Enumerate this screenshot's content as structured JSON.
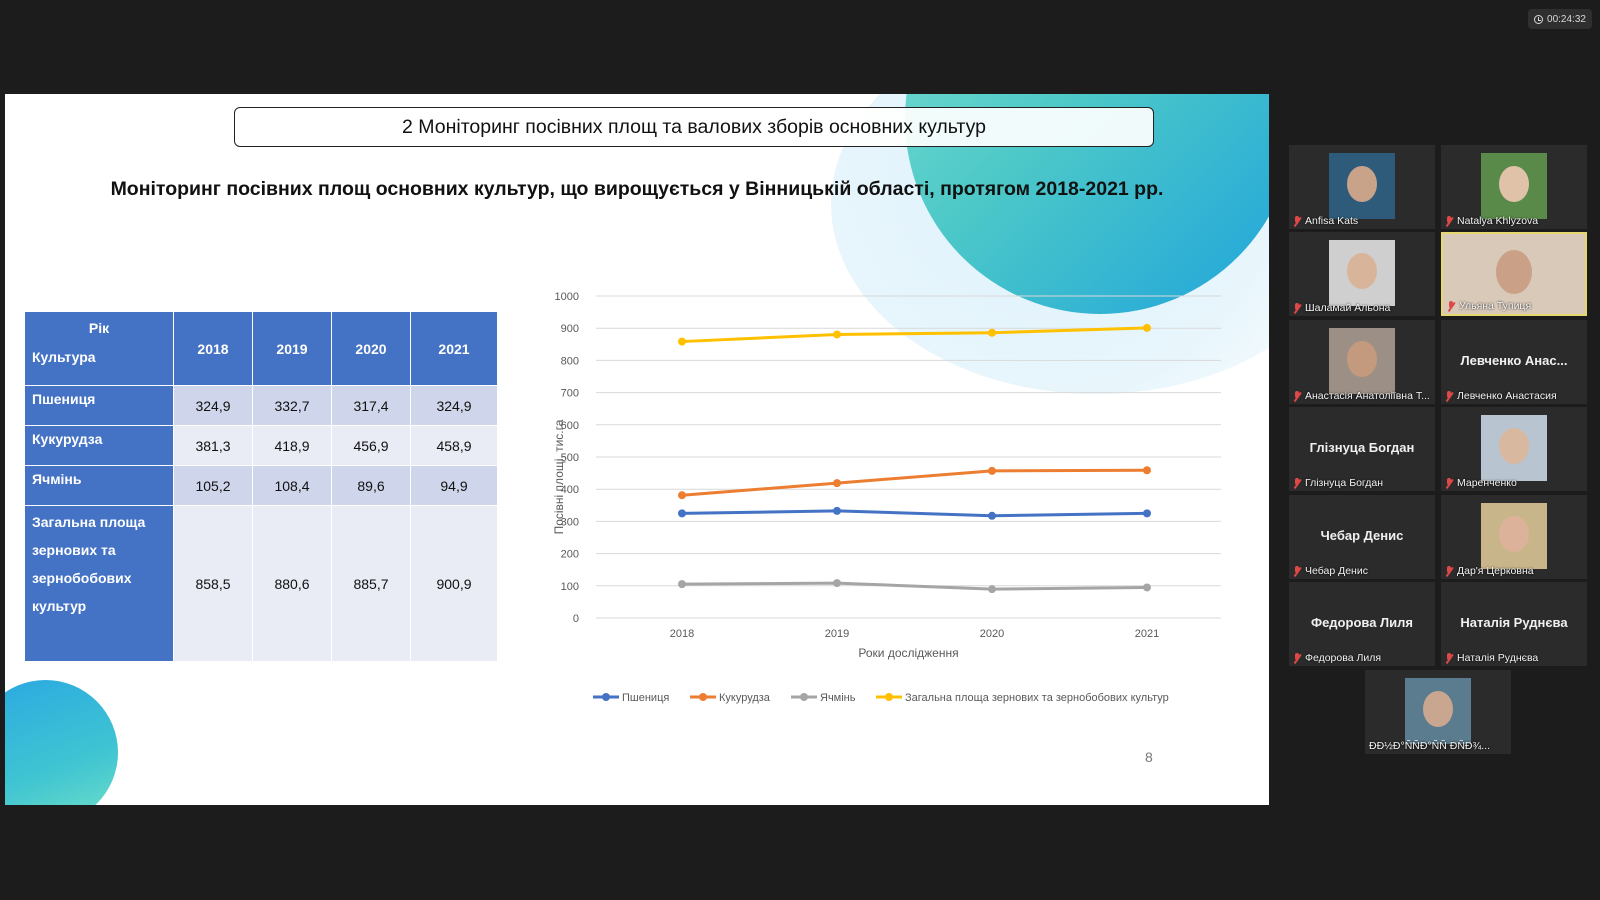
{
  "timer": "00:24:32",
  "slide": {
    "title": "2 Моніторинг посівних площ та валових зборів основних культур",
    "subtitle": "Моніторинг посівних площ основних культур, що вирощується у Вінницькій області, протягом 2018-2021 рр.",
    "page_number": "8",
    "table": {
      "corner_top": "Рік",
      "corner_bottom": "Культура",
      "years": [
        "2018",
        "2019",
        "2020",
        "2021"
      ],
      "rows": [
        {
          "label": "Пшениця",
          "values": [
            "324,9",
            "332,7",
            "317,4",
            "324,9"
          ]
        },
        {
          "label": "Кукурудза",
          "values": [
            "381,3",
            "418,9",
            "456,9",
            "458,9"
          ]
        },
        {
          "label": "Ячмінь",
          "values": [
            "105,2",
            "108,4",
            "89,6",
            "94,9"
          ]
        },
        {
          "label": "Загальна площа зернових та зернобобових культур",
          "values": [
            "858,5",
            "880,6",
            "885,7",
            "900,9"
          ]
        }
      ]
    }
  },
  "chart_data": {
    "type": "line",
    "categories": [
      "2018",
      "2019",
      "2020",
      "2021"
    ],
    "ylim": [
      0,
      1000
    ],
    "yticks": [
      0,
      100,
      200,
      300,
      400,
      500,
      600,
      700,
      800,
      900,
      1000
    ],
    "xlabel": "Роки дослідження",
    "ylabel": "Посівні площі, тис.га",
    "grid": true,
    "legend": "bottom",
    "series": [
      {
        "name": "Пшениця",
        "color": "#4472c4",
        "values": [
          324.9,
          332.7,
          317.4,
          324.9
        ]
      },
      {
        "name": "Кукурудза",
        "color": "#ed7d31",
        "values": [
          381.3,
          418.9,
          456.9,
          458.9
        ]
      },
      {
        "name": "Ячмінь",
        "color": "#a5a5a5",
        "values": [
          105.2,
          108.4,
          89.6,
          94.9
        ]
      },
      {
        "name": "Загальна площа зернових та зернобобових культур",
        "color": "#ffc000",
        "values": [
          858.5,
          880.6,
          885.7,
          900.9
        ]
      }
    ]
  },
  "participants": [
    {
      "name": "Anfisa Kats",
      "video": true
    },
    {
      "name": "Natalya Khlyzova",
      "video": true
    },
    {
      "name": "Шаламай Альона",
      "video": true
    },
    {
      "name": "Ульяна Тупиця",
      "video": true,
      "active": true
    },
    {
      "name": "Анастасія Анатоліївна Т...",
      "video": true
    },
    {
      "name": "Левченко Анастасия",
      "display": "Левченко Анас...",
      "video": false
    },
    {
      "name": "Глізнуца Богдан",
      "display": "Глізнуца Богдан",
      "video": false
    },
    {
      "name": "Маренченко",
      "video": true
    },
    {
      "name": "Чебар Денис",
      "display": "Чебар Денис",
      "video": false
    },
    {
      "name": "Дар'я Церковна",
      "video": true
    },
    {
      "name": "Федорова Лиля",
      "display": "Федорова Лиля",
      "video": false
    },
    {
      "name": "Наталія Руднєва",
      "display": "Наталія Руднєва",
      "video": false
    },
    {
      "name": "ÐÐ½Ð°ÑÑÐ°ÑÑ ÐÑÐ¾..."
    }
  ]
}
